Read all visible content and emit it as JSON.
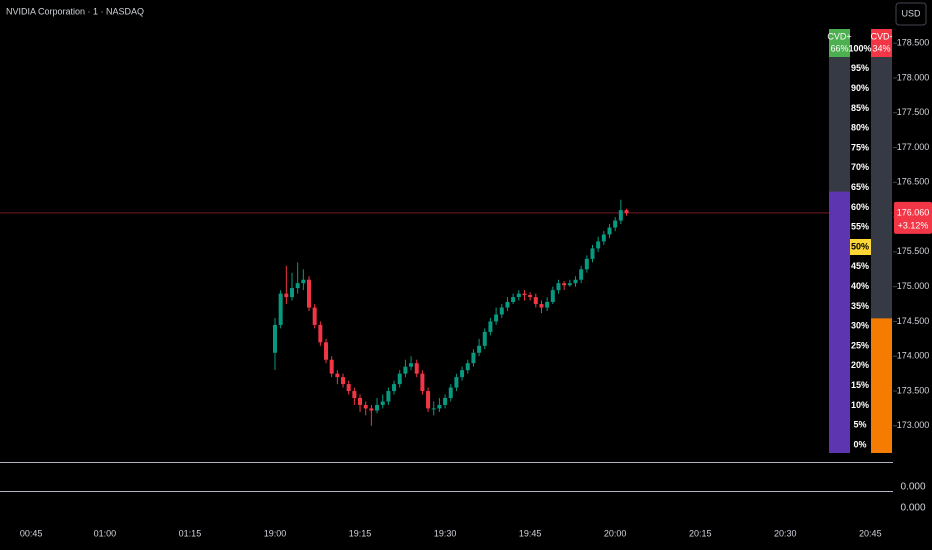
{
  "header": {
    "symbol": "NVIDIA Corporation · 1 · NASDAQ",
    "currency": "USD"
  },
  "chart_data": [
    {
      "type": "candlestick",
      "x": [
        0,
        1,
        2,
        3,
        4,
        5,
        6,
        7,
        8,
        9,
        10,
        11,
        12,
        13,
        14,
        15,
        16,
        17,
        18,
        19,
        20,
        21,
        22,
        23,
        24,
        25,
        26,
        27,
        28,
        29,
        30,
        31,
        32,
        33,
        34,
        35,
        36,
        37,
        38,
        39,
        40,
        41,
        42,
        43,
        44,
        45,
        46,
        47,
        48,
        49,
        50,
        51,
        52,
        53,
        54,
        55,
        56,
        57,
        58,
        59,
        60,
        61,
        62
      ],
      "open": [
        174.05,
        174.45,
        174.9,
        174.85,
        174.98,
        175.05,
        175.1,
        174.7,
        174.45,
        174.2,
        173.95,
        173.75,
        173.7,
        173.6,
        173.5,
        173.4,
        173.3,
        173.25,
        173.22,
        173.3,
        173.35,
        173.5,
        173.6,
        173.75,
        173.85,
        173.9,
        173.75,
        173.5,
        173.25,
        173.25,
        173.3,
        173.4,
        173.55,
        173.7,
        173.8,
        173.9,
        174.05,
        174.15,
        174.35,
        174.5,
        174.6,
        174.7,
        174.78,
        174.85,
        174.9,
        174.88,
        174.85,
        174.75,
        174.7,
        174.78,
        174.95,
        175.05,
        175.02,
        175.05,
        175.1,
        175.25,
        175.4,
        175.55,
        175.65,
        175.75,
        175.85,
        175.95,
        176.1
      ],
      "high": [
        174.55,
        174.95,
        175.3,
        175.2,
        175.35,
        175.25,
        175.15,
        174.75,
        174.5,
        174.25,
        174.0,
        173.8,
        173.75,
        173.65,
        173.55,
        173.45,
        173.35,
        173.3,
        173.4,
        173.45,
        173.55,
        173.65,
        173.8,
        173.95,
        174.0,
        173.95,
        173.8,
        173.55,
        173.35,
        173.4,
        173.45,
        173.6,
        173.75,
        173.85,
        173.95,
        174.1,
        174.25,
        174.4,
        174.55,
        174.7,
        174.75,
        174.85,
        174.9,
        174.95,
        174.95,
        174.92,
        174.9,
        174.8,
        174.85,
        175.0,
        175.1,
        175.08,
        175.1,
        175.15,
        175.3,
        175.45,
        175.6,
        175.72,
        175.8,
        175.9,
        176.0,
        176.25,
        176.12
      ],
      "low": [
        173.8,
        174.4,
        174.75,
        174.8,
        174.9,
        174.95,
        174.65,
        174.4,
        174.15,
        173.9,
        173.7,
        173.6,
        173.55,
        173.45,
        173.3,
        173.2,
        173.15,
        173.0,
        173.18,
        173.25,
        173.3,
        173.45,
        173.55,
        173.7,
        173.8,
        173.7,
        173.45,
        173.2,
        173.15,
        173.2,
        173.25,
        173.35,
        173.5,
        173.65,
        173.75,
        173.85,
        174.0,
        174.1,
        174.3,
        174.45,
        174.55,
        174.65,
        174.75,
        174.8,
        174.8,
        174.8,
        174.7,
        174.62,
        174.65,
        174.75,
        174.9,
        174.95,
        175.0,
        175.0,
        175.05,
        175.2,
        175.35,
        175.5,
        175.6,
        175.7,
        175.8,
        175.9,
        176.02
      ],
      "close": [
        174.45,
        174.9,
        174.85,
        174.98,
        175.05,
        175.1,
        174.7,
        174.45,
        174.2,
        173.95,
        173.75,
        173.7,
        173.6,
        173.5,
        173.4,
        173.3,
        173.25,
        173.22,
        173.3,
        173.35,
        173.5,
        173.6,
        173.75,
        173.85,
        173.9,
        173.75,
        173.5,
        173.25,
        173.25,
        173.3,
        173.4,
        173.55,
        173.7,
        173.8,
        173.9,
        174.05,
        174.15,
        174.35,
        174.5,
        174.6,
        174.7,
        174.78,
        174.85,
        174.9,
        174.88,
        174.85,
        174.75,
        174.7,
        174.78,
        174.95,
        175.05,
        175.02,
        175.05,
        175.1,
        175.25,
        175.4,
        175.55,
        175.65,
        175.75,
        175.85,
        175.95,
        176.1,
        176.06
      ],
      "up_color": "#089981",
      "down_color": "#f23645",
      "xlim": [
        -48.5,
        109
      ],
      "xticks": [
        {
          "value": -43,
          "label": "00:45"
        },
        {
          "value": -30,
          "label": "01:00"
        },
        {
          "value": -15,
          "label": "01:15"
        },
        {
          "value": 0,
          "label": "19:00"
        },
        {
          "value": 15,
          "label": "19:15"
        },
        {
          "value": 30,
          "label": "19:30"
        },
        {
          "value": 45,
          "label": "19:45"
        },
        {
          "value": 60,
          "label": "20:00"
        },
        {
          "value": 75,
          "label": "20:15"
        },
        {
          "value": 90,
          "label": "20:30"
        },
        {
          "value": 105,
          "label": "20:45"
        }
      ],
      "ylim": [
        172.48,
        179.12
      ],
      "yticks": [
        {
          "value": 173,
          "label": "173.000"
        },
        {
          "value": 173.5,
          "label": "173.500"
        },
        {
          "value": 174,
          "label": "174.000"
        },
        {
          "value": 174.5,
          "label": "174.500"
        },
        {
          "value": 175,
          "label": "175.000"
        },
        {
          "value": 175.5,
          "label": "175.500"
        },
        {
          "value": 176,
          "label": "176.000"
        },
        {
          "value": 176.5,
          "label": "176.500"
        },
        {
          "value": 177,
          "label": "177.000"
        },
        {
          "value": 177.5,
          "label": "177.500"
        },
        {
          "value": 178,
          "label": "178.000"
        },
        {
          "value": 178.5,
          "label": "178.500"
        }
      ],
      "last_price": {
        "value": 176.06,
        "label": "176.060",
        "change": "+3.12%",
        "color": "#f23645"
      }
    },
    {
      "type": "gauge",
      "categories": [
        "CVD+",
        "CVD-"
      ],
      "values": [
        66,
        34
      ],
      "value_labels": [
        "66%",
        "34%"
      ],
      "colors": [
        "#5e35b1",
        "#f57c00"
      ],
      "label_colors": [
        "#4caf50",
        "#f23645"
      ],
      "ylim": [
        0,
        100
      ],
      "yticks": [
        {
          "value": 100,
          "label": "100%"
        },
        {
          "value": 95,
          "label": "95%"
        },
        {
          "value": 90,
          "label": "90%"
        },
        {
          "value": 85,
          "label": "85%"
        },
        {
          "value": 80,
          "label": "80%"
        },
        {
          "value": 75,
          "label": "75%"
        },
        {
          "value": 70,
          "label": "70%"
        },
        {
          "value": 65,
          "label": "65%"
        },
        {
          "value": 60,
          "label": "60%"
        },
        {
          "value": 55,
          "label": "55%"
        },
        {
          "value": 50,
          "label": "50%"
        },
        {
          "value": 45,
          "label": "45%"
        },
        {
          "value": 40,
          "label": "40%"
        },
        {
          "value": 35,
          "label": "35%"
        },
        {
          "value": 30,
          "label": "30%"
        },
        {
          "value": 25,
          "label": "25%"
        },
        {
          "value": 20,
          "label": "20%"
        },
        {
          "value": 15,
          "label": "15%"
        },
        {
          "value": 10,
          "label": "10%"
        },
        {
          "value": 5,
          "label": "5%"
        },
        {
          "value": 0,
          "label": "0%"
        }
      ],
      "highlight": 50
    }
  ],
  "lower_panes": [
    "0.000",
    "0.000"
  ]
}
